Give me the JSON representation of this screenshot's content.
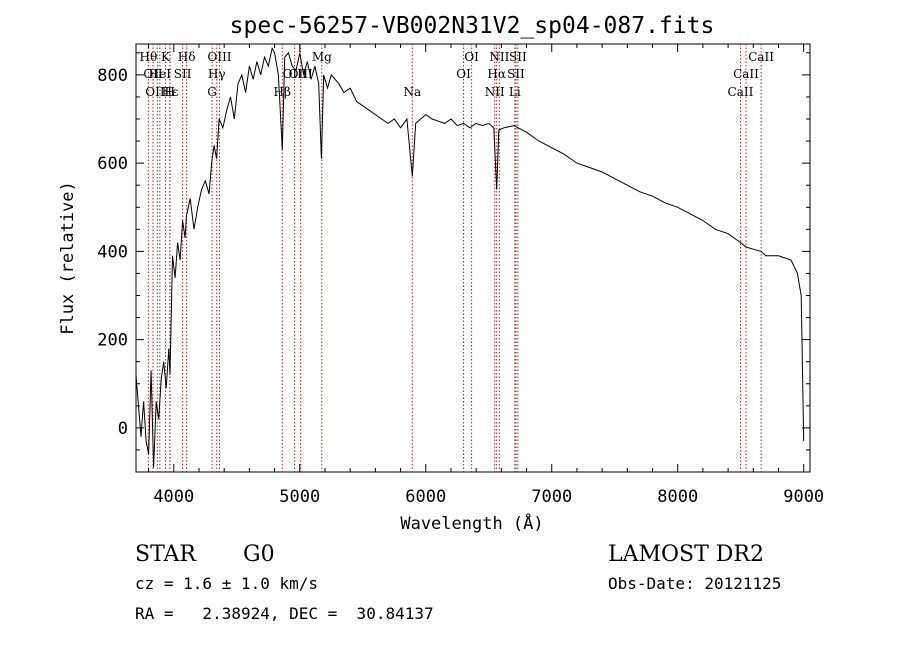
{
  "chart_data": {
    "type": "line",
    "title": "spec-56257-VB002N31V2_sp04-087.fits",
    "xlabel": "Wavelength (Å)",
    "ylabel": "Flux (relative)",
    "xlim": [
      3700,
      9050
    ],
    "ylim": [
      -100,
      870
    ],
    "x_ticks": [
      4000,
      5000,
      6000,
      7000,
      8000,
      9000
    ],
    "y_ticks": [
      0,
      200,
      400,
      600,
      800
    ],
    "grid": false,
    "series": [
      {
        "x": [
          3700,
          3720,
          3740,
          3760,
          3780,
          3800,
          3820,
          3840,
          3860,
          3880,
          3900,
          3920,
          3940,
          3960,
          3970,
          3990,
          4010,
          4030,
          4050,
          4070,
          4090,
          4100,
          4130,
          4160,
          4190,
          4220,
          4250,
          4280,
          4300,
          4320,
          4340,
          4360,
          4390,
          4420,
          4450,
          4480,
          4510,
          4540,
          4570,
          4600,
          4630,
          4660,
          4690,
          4720,
          4750,
          4780,
          4800,
          4830,
          4861,
          4880,
          4910,
          4940,
          4970,
          5000,
          5030,
          5060,
          5090,
          5120,
          5150,
          5172,
          5190,
          5220,
          5250,
          5280,
          5310,
          5350,
          5400,
          5450,
          5500,
          5550,
          5600,
          5650,
          5700,
          5750,
          5800,
          5850,
          5893,
          5920,
          5960,
          6000,
          6050,
          6100,
          6150,
          6200,
          6250,
          6300,
          6350,
          6400,
          6450,
          6500,
          6540,
          6563,
          6580,
          6620,
          6700,
          6800,
          6900,
          7000,
          7100,
          7200,
          7300,
          7400,
          7500,
          7600,
          7700,
          7800,
          7900,
          8000,
          8100,
          8200,
          8300,
          8400,
          8500,
          8542,
          8600,
          8662,
          8700,
          8800,
          8900,
          8950,
          8980,
          9000
        ],
        "y": [
          120,
          50,
          -20,
          60,
          -30,
          -60,
          130,
          -90,
          60,
          20,
          110,
          150,
          90,
          180,
          120,
          390,
          340,
          420,
          380,
          470,
          430,
          480,
          520,
          450,
          500,
          540,
          560,
          530,
          600,
          640,
          610,
          700,
          680,
          720,
          750,
          700,
          780,
          800,
          760,
          820,
          790,
          830,
          800,
          840,
          820,
          860,
          850,
          800,
          630,
          840,
          850,
          820,
          810,
          850,
          800,
          830,
          790,
          820,
          780,
          610,
          800,
          770,
          800,
          790,
          780,
          760,
          770,
          740,
          730,
          720,
          710,
          700,
          690,
          700,
          680,
          700,
          570,
          690,
          700,
          710,
          700,
          695,
          690,
          700,
          685,
          690,
          680,
          690,
          685,
          690,
          680,
          540,
          675,
          680,
          685,
          670,
          650,
          635,
          620,
          600,
          590,
          580,
          565,
          550,
          535,
          525,
          510,
          500,
          485,
          470,
          450,
          440,
          420,
          410,
          405,
          400,
          390,
          390,
          380,
          350,
          300,
          -30
        ]
      }
    ],
    "spectral_lines": [
      {
        "wl": 3798,
        "label": "Hθ",
        "row": 0
      },
      {
        "wl": 3835,
        "label": "OII",
        "row": 1
      },
      {
        "wl": 3869,
        "label": "OIII",
        "row": 2
      },
      {
        "wl": 3889,
        "label": "HeI",
        "row": 1
      },
      {
        "wl": 3934,
        "label": "K",
        "row": 0
      },
      {
        "wl": 3970,
        "label": "Hε",
        "row": 2
      },
      {
        "wl": 3968,
        "label": "H",
        "row": 2
      },
      {
        "wl": 4070,
        "label": "SII",
        "row": 1
      },
      {
        "wl": 4102,
        "label": "Hδ",
        "row": 0
      },
      {
        "wl": 4304,
        "label": "G",
        "row": 2
      },
      {
        "wl": 4341,
        "label": "Hγ",
        "row": 1
      },
      {
        "wl": 4363,
        "label": "OIII",
        "row": 0
      },
      {
        "wl": 4861,
        "label": "Hβ",
        "row": 2
      },
      {
        "wl": 4959,
        "label": "OIII",
        "row": 1
      },
      {
        "wl": 5007,
        "label": "OIII",
        "row": 1
      },
      {
        "wl": 5175,
        "label": "Mg",
        "row": 0
      },
      {
        "wl": 5893,
        "label": "Na",
        "row": 2
      },
      {
        "wl": 6300,
        "label": "OI",
        "row": 1
      },
      {
        "wl": 6364,
        "label": "OI",
        "row": 0
      },
      {
        "wl": 6548,
        "label": "NII",
        "row": 2
      },
      {
        "wl": 6563,
        "label": "Hα",
        "row": 1
      },
      {
        "wl": 6584,
        "label": "NII",
        "row": 0
      },
      {
        "wl": 6707,
        "label": "Li",
        "row": 2
      },
      {
        "wl": 6716,
        "label": "SII",
        "row": 1
      },
      {
        "wl": 6731,
        "label": "SII",
        "row": 0
      },
      {
        "wl": 8498,
        "label": "CaII",
        "row": 2
      },
      {
        "wl": 8542,
        "label": "CaII",
        "row": 1
      },
      {
        "wl": 8662,
        "label": "CaII",
        "row": 0
      }
    ]
  },
  "info": {
    "class_label": "STAR",
    "subclass": "G0",
    "survey": "LAMOST DR2",
    "redshift": "cz = 1.6 ± 1.0 km/s",
    "obs_date": "Obs-Date: 20121125",
    "coords": "RA =   2.38924, DEC =  30.84137"
  }
}
